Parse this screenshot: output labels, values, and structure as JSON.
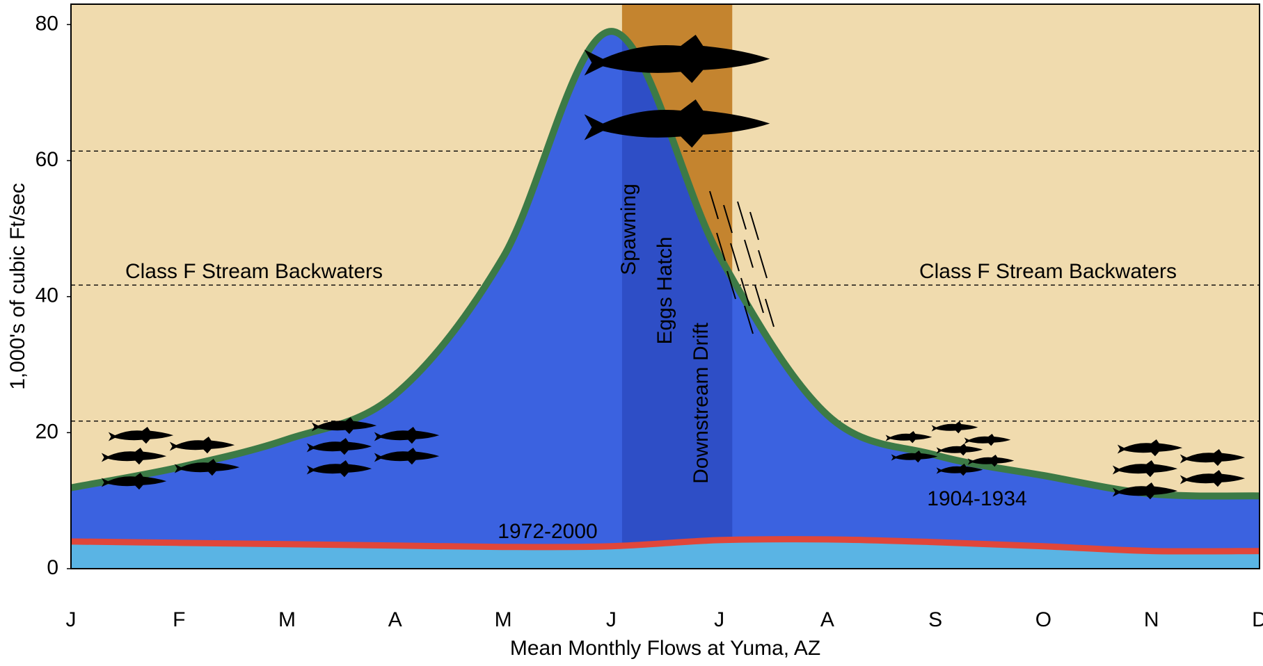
{
  "chart_data": {
    "type": "area",
    "xlabel": "Mean Monthly Flows at Yuma, AZ",
    "ylabel": "1,000's of cubic Ft/sec",
    "categories": [
      "J",
      "F",
      "M",
      "A",
      "M",
      "J",
      "J",
      "A",
      "S",
      "O",
      "N",
      "D"
    ],
    "ylim": [
      0,
      83
    ],
    "yticks": [
      0,
      20,
      40,
      60,
      80
    ],
    "reference_lines": [
      21.7,
      41.7,
      61.4
    ],
    "background_color": "#f0dbae",
    "highlight_span": [
      5.1,
      6.12
    ],
    "highlight_colors": {
      "above": "#c4842f",
      "below": "#2e4ec6"
    },
    "series": [
      {
        "name": "1904-1934",
        "color": "#3b62e0",
        "line_color": "#3c7a46",
        "values": [
          11.9,
          14.9,
          19,
          25.6,
          45.8,
          79,
          46,
          22.6,
          16.7,
          13.7,
          11,
          10.7
        ]
      },
      {
        "name": "1972-2000",
        "color": "#5ab4e4",
        "line_color": "#e0463a",
        "values": [
          4.0,
          3.8,
          3.6,
          3.4,
          3.2,
          3.3,
          4.2,
          4.3,
          3.9,
          3.3,
          2.6,
          2.6
        ]
      }
    ],
    "annotations": [
      "Class F Stream Backwaters",
      "Class F Stream Backwaters",
      "Spawning",
      "Eggs Hatch",
      "Downstream Drift"
    ]
  }
}
